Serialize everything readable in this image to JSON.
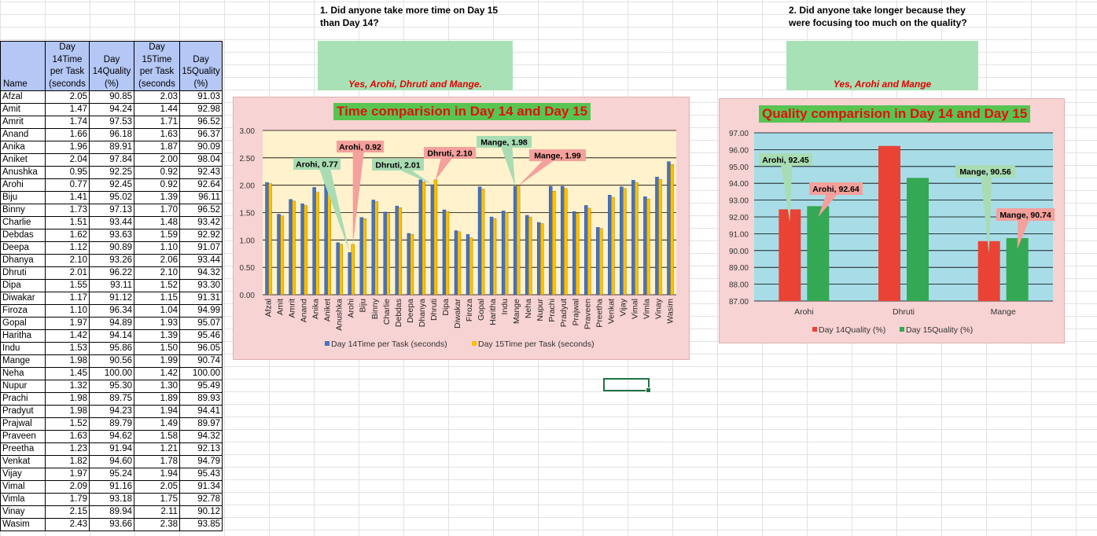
{
  "table": {
    "headers": {
      "name": "Name",
      "d14time": [
        "Day",
        "14Time",
        "per Task",
        "(seconds"
      ],
      "d14qual": [
        "Day",
        "14Quality",
        "(%)"
      ],
      "d15time": [
        "Day",
        "15Time",
        "per Task",
        "(seconds"
      ],
      "d15qual": [
        "Day",
        "15Quality",
        "(%)"
      ]
    },
    "rows": [
      [
        "Afzal",
        "2.05",
        "90.85",
        "2.03",
        "91.03"
      ],
      [
        "Amit",
        "1.47",
        "94.24",
        "1.44",
        "92.98"
      ],
      [
        "Amrit",
        "1.74",
        "97.53",
        "1.71",
        "96.52"
      ],
      [
        "Anand",
        "1.66",
        "96.18",
        "1.63",
        "96.37"
      ],
      [
        "Anika",
        "1.96",
        "89.91",
        "1.87",
        "90.09"
      ],
      [
        "Aniket",
        "2.04",
        "97.84",
        "2.00",
        "98.04"
      ],
      [
        "Anushka",
        "0.95",
        "92.25",
        "0.92",
        "92.43"
      ],
      [
        "Arohi",
        "0.77",
        "92.45",
        "0.92",
        "92.64"
      ],
      [
        "Biju",
        "1.41",
        "95.02",
        "1.39",
        "96.11"
      ],
      [
        "Binny",
        "1.73",
        "97.13",
        "1.70",
        "96.52"
      ],
      [
        "Charlie",
        "1.51",
        "93.44",
        "1.48",
        "93.42"
      ],
      [
        "Debdas",
        "1.62",
        "93.63",
        "1.59",
        "92.92"
      ],
      [
        "Deepa",
        "1.12",
        "90.89",
        "1.10",
        "91.07"
      ],
      [
        "Dhanya",
        "2.10",
        "93.26",
        "2.06",
        "93.44"
      ],
      [
        "Dhruti",
        "2.01",
        "96.22",
        "2.10",
        "94.32"
      ],
      [
        "Dipa",
        "1.55",
        "93.11",
        "1.52",
        "93.30"
      ],
      [
        "Diwakar",
        "1.17",
        "91.12",
        "1.15",
        "91.31"
      ],
      [
        "Firoza",
        "1.10",
        "96.34",
        "1.04",
        "94.99"
      ],
      [
        "Gopal",
        "1.97",
        "94.89",
        "1.93",
        "95.07"
      ],
      [
        "Haritha",
        "1.42",
        "94.14",
        "1.39",
        "95.46"
      ],
      [
        "Indu",
        "1.53",
        "95.86",
        "1.50",
        "96.05"
      ],
      [
        "Mange",
        "1.98",
        "90.56",
        "1.99",
        "90.74"
      ],
      [
        "Neha",
        "1.45",
        "100.00",
        "1.42",
        "100.00"
      ],
      [
        "Nupur",
        "1.32",
        "95.30",
        "1.30",
        "95.49"
      ],
      [
        "Prachi",
        "1.98",
        "89.75",
        "1.89",
        "89.93"
      ],
      [
        "Pradyut",
        "1.98",
        "94.23",
        "1.94",
        "94.41"
      ],
      [
        "Prajwal",
        "1.52",
        "89.79",
        "1.49",
        "89.97"
      ],
      [
        "Praveen",
        "1.63",
        "94.62",
        "1.58",
        "94.32"
      ],
      [
        "Preetha",
        "1.23",
        "91.94",
        "1.21",
        "92.13"
      ],
      [
        "Venkat",
        "1.82",
        "94.60",
        "1.78",
        "94.79"
      ],
      [
        "Vijay",
        "1.97",
        "95.24",
        "1.94",
        "95.43"
      ],
      [
        "Vimal",
        "2.09",
        "91.16",
        "2.05",
        "91.34"
      ],
      [
        "Vimla",
        "1.79",
        "93.18",
        "1.75",
        "92.78"
      ],
      [
        "Vinay",
        "2.15",
        "89.94",
        "2.11",
        "90.12"
      ],
      [
        "Wasim",
        "2.43",
        "93.66",
        "2.38",
        "93.85"
      ]
    ]
  },
  "questions": {
    "q1": "1. Did anyone take more time on Day 15 than Day 14?",
    "a1": "Yes, Arohi, Dhruti and Mange.",
    "q2": "2. Did anyone take longer because they were focusing too much on the quality?",
    "a2": "Yes, Arohi and Mange"
  },
  "colors": {
    "header_blue": "#b4c7f5",
    "answer_green": "#a9e1b6",
    "chart_bg": "#f8d3d3",
    "title_green": "#58c552",
    "title_red": "#e11010",
    "time_plot_bg": "#fff2cc",
    "quality_plot_bg": "#a8dde8",
    "series_blue": "#4472c4",
    "series_yellow": "#ffc000",
    "series_red": "#ea4335",
    "series_green": "#34a853",
    "callout_red": "#f4a09c",
    "callout_green": "#a9dcb3"
  },
  "chart_data": [
    {
      "type": "bar",
      "title": "Time comparision in Day 14 and Day 15",
      "categories": [
        "Afzal",
        "Amit",
        "Amrit",
        "Anand",
        "Anika",
        "Aniket",
        "Anushka",
        "Arohi",
        "Biju",
        "Binny",
        "Charlie",
        "Debdas",
        "Deepa",
        "Dhanya",
        "Dhruti",
        "Dipa",
        "Diwakar",
        "Firoza",
        "Gopal",
        "Haritha",
        "Indu",
        "Mange",
        "Neha",
        "Nupur",
        "Prachi",
        "Pradyut",
        "Prajwal",
        "Praveen",
        "Preetha",
        "Venkat",
        "Vijay",
        "Vimal",
        "Vimla",
        "Vinay",
        "Wasim"
      ],
      "series": [
        {
          "name": "Day 14Time per Task (seconds)",
          "values": [
            2.05,
            1.47,
            1.74,
            1.66,
            1.96,
            2.04,
            0.95,
            0.77,
            1.41,
            1.73,
            1.51,
            1.62,
            1.12,
            2.1,
            2.01,
            1.55,
            1.17,
            1.1,
            1.97,
            1.42,
            1.53,
            1.98,
            1.45,
            1.32,
            1.98,
            1.98,
            1.52,
            1.63,
            1.23,
            1.82,
            1.97,
            2.09,
            1.79,
            2.15,
            2.43
          ]
        },
        {
          "name": "Day 15Time per Task (seconds)",
          "values": [
            2.03,
            1.44,
            1.71,
            1.63,
            1.87,
            2.0,
            0.92,
            0.92,
            1.39,
            1.7,
            1.48,
            1.59,
            1.1,
            2.06,
            2.1,
            1.52,
            1.15,
            1.04,
            1.93,
            1.39,
            1.5,
            1.99,
            1.42,
            1.3,
            1.89,
            1.94,
            1.49,
            1.58,
            1.21,
            1.78,
            1.94,
            2.05,
            1.75,
            2.11,
            2.38
          ]
        }
      ],
      "ylim": [
        0,
        3
      ],
      "yticks": [
        "0.00",
        "0.50",
        "1.00",
        "1.50",
        "2.00",
        "2.50",
        "3.00"
      ],
      "legend": "bottom",
      "grid": true,
      "annotations": [
        {
          "text": "Arohi, 0.77",
          "category": "Arohi",
          "series": 0,
          "style": "green"
        },
        {
          "text": "Arohi, 0.92",
          "category": "Arohi",
          "series": 1,
          "style": "red"
        },
        {
          "text": "Dhruti, 2.01",
          "category": "Dhruti",
          "series": 0,
          "style": "green"
        },
        {
          "text": "Dhruti, 2.10",
          "category": "Dhruti",
          "series": 1,
          "style": "red"
        },
        {
          "text": "Mange, 1.98",
          "category": "Mange",
          "series": 0,
          "style": "green"
        },
        {
          "text": "Mange, 1.99",
          "category": "Mange",
          "series": 1,
          "style": "red"
        }
      ]
    },
    {
      "type": "bar",
      "title": "Quality comparision in Day 14 and Day 15",
      "categories": [
        "Arohi",
        "Dhruti",
        "Mange"
      ],
      "series": [
        {
          "name": "Day 14Quality (%)",
          "values": [
            92.45,
            96.22,
            90.56
          ]
        },
        {
          "name": "Day 15Quality (%)",
          "values": [
            92.64,
            94.32,
            90.74
          ]
        }
      ],
      "ylim": [
        87,
        97
      ],
      "yticks": [
        "87.00",
        "88.00",
        "89.00",
        "90.00",
        "91.00",
        "92.00",
        "93.00",
        "94.00",
        "95.00",
        "96.00",
        "97.00"
      ],
      "legend": "bottom",
      "grid": true,
      "annotations": [
        {
          "text": "Arohi, 92.45",
          "category": "Arohi",
          "series": 0,
          "style": "green"
        },
        {
          "text": "Arohi, 92.64",
          "category": "Arohi",
          "series": 1,
          "style": "red"
        },
        {
          "text": "Mange, 90.56",
          "category": "Mange",
          "series": 0,
          "style": "green"
        },
        {
          "text": "Mange, 90.74",
          "category": "Mange",
          "series": 1,
          "style": "red"
        }
      ]
    }
  ]
}
